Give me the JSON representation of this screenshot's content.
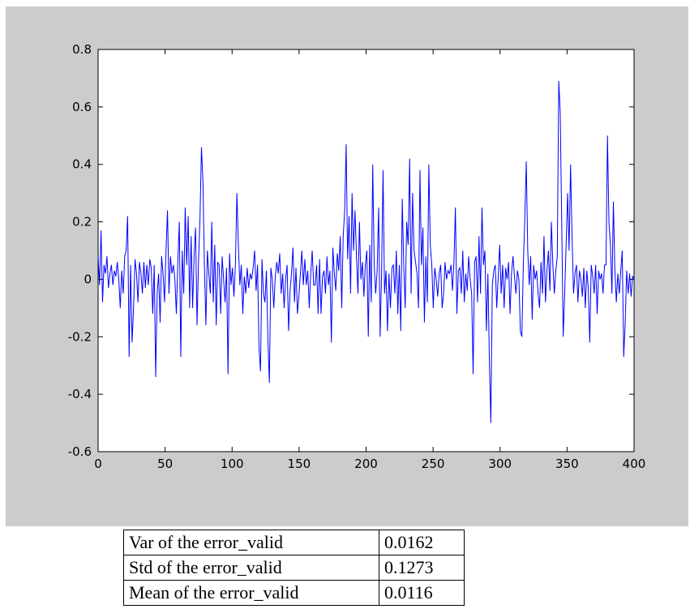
{
  "chart_data": {
    "type": "line",
    "title": "",
    "xlabel": "",
    "ylabel": "",
    "xlim": [
      0,
      400
    ],
    "ylim": [
      -0.6,
      0.8
    ],
    "xticks": [
      "0",
      "50",
      "100",
      "150",
      "200",
      "250",
      "300",
      "350",
      "400"
    ],
    "yticks": [
      "0.8",
      "0.6",
      "0.4",
      "0.2",
      "0",
      "-0.2",
      "-0.4",
      "-0.6"
    ],
    "grid": false,
    "legend": "none",
    "series": [
      {
        "color": "#0000ff",
        "values": [
          0.08,
          -0.02,
          0.17,
          -0.08,
          0.05,
          0.02,
          0.08,
          -0.03,
          0.02,
          0.05,
          -0.02,
          0.03,
          0.01,
          0.06,
          0.0,
          -0.1,
          0.03,
          -0.05,
          0.08,
          0.1,
          0.22,
          -0.27,
          0.05,
          -0.22,
          -0.1,
          0.07,
          0.02,
          -0.08,
          0.06,
          0.02,
          -0.05,
          0.06,
          -0.03,
          0.05,
          -0.02,
          0.07,
          0.04,
          -0.12,
          0.05,
          -0.34,
          -0.05,
          0.02,
          -0.15,
          0.08,
          0.02,
          -0.08,
          0.1,
          0.24,
          -0.05,
          0.08,
          0.02,
          0.05,
          0.0,
          -0.12,
          0.06,
          0.2,
          -0.27,
          0.1,
          -0.05,
          0.25,
          0.05,
          0.22,
          -0.1,
          0.15,
          -0.1,
          0.08,
          0.18,
          -0.16,
          0.06,
          0.21,
          0.46,
          0.34,
          0.05,
          -0.16,
          0.1,
          0.02,
          -0.05,
          0.2,
          -0.08,
          0.12,
          -0.16,
          0.06,
          0.05,
          -0.12,
          0.08,
          0.0,
          -0.08,
          0.04,
          -0.33,
          0.09,
          -0.02,
          0.04,
          -0.06,
          0.05,
          0.3,
          0.12,
          -0.02,
          0.05,
          -0.12,
          0.01,
          -0.05,
          0.04,
          -0.03,
          0.02,
          0.0,
          0.04,
          0.1,
          -0.04,
          0.05,
          -0.24,
          -0.32,
          0.07,
          -0.05,
          -0.08,
          0.03,
          -0.21,
          -0.36,
          0.04,
          0.0,
          -0.1,
          0.01,
          0.06,
          0.02,
          0.09,
          -0.05,
          0.02,
          -0.1,
          0.0,
          0.05,
          -0.18,
          -0.04,
          0.02,
          0.11,
          -0.08,
          0.04,
          -0.12,
          -0.06,
          0.02,
          0.1,
          -0.02,
          0.07,
          -0.02,
          0.03,
          -0.1,
          0.02,
          0.1,
          -0.02,
          -0.02,
          0.05,
          -0.12,
          0.07,
          -0.12,
          0.01,
          0.03,
          -0.05,
          0.08,
          -0.02,
          0.03,
          -0.22,
          0.11,
          0.02,
          -0.04,
          0.09,
          0.03,
          0.15,
          -0.1,
          0.15,
          0.24,
          0.47,
          0.07,
          0.22,
          -0.05,
          0.3,
          0.1,
          0.24,
          0.08,
          -0.05,
          0.2,
          0.0,
          0.06,
          -0.06,
          0.05,
          0.1,
          -0.2,
          0.12,
          -0.08,
          0.4,
          0.05,
          -0.05,
          0.03,
          0.25,
          -0.2,
          0.02,
          0.38,
          -0.05,
          0.03,
          -0.18,
          0.02,
          -0.1,
          0.04,
          0.05,
          -0.05,
          0.1,
          -0.12,
          0.05,
          -0.18,
          0.28,
          0.05,
          -0.1,
          0.2,
          0.12,
          0.42,
          -0.05,
          0.3,
          0.1,
          0.06,
          0.02,
          -0.1,
          0.38,
          0.05,
          0.18,
          -0.15,
          0.08,
          -0.08,
          0.4,
          0.12,
          0.05,
          -0.1,
          0.04,
          0.0,
          -0.06,
          0.02,
          0.05,
          -0.1,
          -0.05,
          0.06,
          0.0,
          0.03,
          0.02,
          0.05,
          -0.04,
          0.06,
          0.25,
          -0.12,
          0.03,
          0.04,
          -0.05,
          0.1,
          -0.08,
          0.02,
          -0.04,
          0.08,
          0.0,
          -0.05,
          -0.33,
          0.06,
          0.08,
          -0.08,
          0.15,
          -0.05,
          0.25,
          0.05,
          0.1,
          -0.18,
          0.02,
          -0.28,
          -0.5,
          -0.02,
          0.03,
          0.05,
          -0.1,
          0.01,
          0.12,
          -0.05,
          0.05,
          -0.1,
          0.04,
          0.0,
          0.06,
          -0.12,
          0.02,
          0.08,
          0.01,
          -0.05,
          0.03,
          0.0,
          -0.18,
          -0.2,
          0.05,
          0.21,
          0.41,
          0.1,
          -0.02,
          0.08,
          -0.14,
          0.05,
          0.0,
          0.03,
          -0.05,
          -0.1,
          0.06,
          -0.05,
          0.15,
          -0.08,
          0.03,
          0.1,
          -0.04,
          0.2,
          0.05,
          -0.05,
          0.03,
          0.08,
          0.69,
          0.58,
          0.2,
          -0.2,
          -0.05,
          0.12,
          0.3,
          0.1,
          0.4,
          0.15,
          -0.05,
          0.02,
          0.05,
          -0.08,
          0.03,
          0.0,
          -0.06,
          0.04,
          -0.1,
          0.03,
          -0.03,
          -0.22,
          0.05,
          0.01,
          -0.05,
          0.05,
          -0.12,
          0.03,
          0.0,
          0.02,
          -0.05,
          0.05,
          0.05,
          0.5,
          0.2,
          0.12,
          -0.05,
          0.27,
          0.03,
          -0.08,
          0.02,
          -0.05,
          0.03,
          0.1,
          -0.27,
          -0.15,
          0.03,
          -0.05,
          0.02,
          -0.06,
          0.01,
          0.0
        ]
      }
    ]
  },
  "stats": [
    {
      "label": "Var of the error_valid",
      "value": "0.0162"
    },
    {
      "label": "Std of the error_valid",
      "value": "0.1273"
    },
    {
      "label": "Mean of the error_valid",
      "value": "0.0116"
    }
  ]
}
